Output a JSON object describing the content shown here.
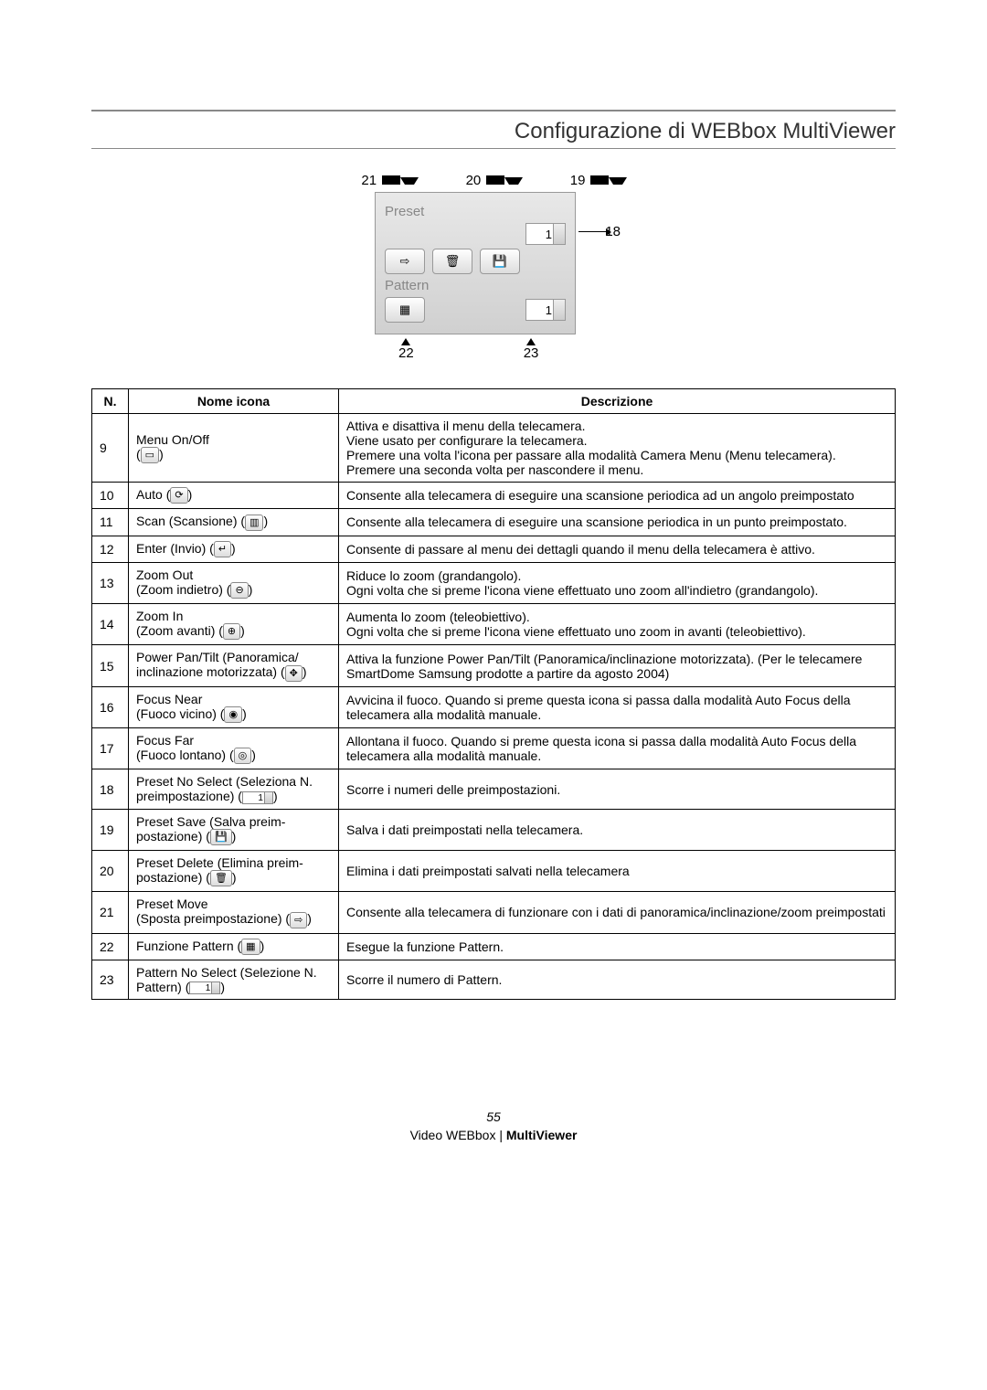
{
  "header": {
    "title": "Configurazione di WEBbox MultiViewer"
  },
  "diagram": {
    "top_callouts": [
      "21",
      "20",
      "19"
    ],
    "right_callout": "18",
    "bottom_callouts": [
      "22",
      "23"
    ],
    "panel": {
      "label_preset": "Preset",
      "preset_value": "1",
      "label_pattern": "Pattern",
      "pattern_value": "1"
    }
  },
  "table": {
    "headers": {
      "n": "N.",
      "name": "Nome icona",
      "desc": "Descrizione"
    },
    "rows": [
      {
        "n": "9",
        "name": "Menu On/Off",
        "icon": "▭",
        "desc": "Attiva e disattiva il menu della telecamera.\nViene usato per configurare la telecamera.\nPremere una volta l'icona per passare alla modalità Camera Menu (Menu telecamera).\nPremere una seconda volta per nascondere il menu."
      },
      {
        "n": "10",
        "name_pre": "Auto (",
        "icon": "⟳",
        "name_post": ")",
        "desc": "Consente alla telecamera di eseguire una scansione periodica ad un angolo preimpostato"
      },
      {
        "n": "11",
        "name_pre": "Scan (Scansione) (",
        "icon": "▥",
        "name_post": ")",
        "desc": "Consente alla telecamera di eseguire una scansione periodica in un punto preimpostato."
      },
      {
        "n": "12",
        "name_pre": "Enter (Invio) (",
        "icon": "↵",
        "name_post": ")",
        "desc": "Consente di passare al menu dei dettagli quando il menu della telecamera è attivo."
      },
      {
        "n": "13",
        "name": "Zoom Out",
        "name2_pre": "(Zoom indietro) (",
        "icon": "⊖",
        "name2_post": ")",
        "desc": "Riduce lo zoom (grandangolo).\nOgni volta che si preme l'icona viene effettuato uno zoom all'indietro (grandangolo)."
      },
      {
        "n": "14",
        "name": "Zoom In",
        "name2_pre": "(Zoom avanti) (",
        "icon": "⊕",
        "name2_post": ")",
        "desc": "Aumenta lo zoom (teleobiettivo).\nOgni volta che si preme l'icona viene effettuato uno zoom in avanti (teleobiettivo)."
      },
      {
        "n": "15",
        "name": "Power Pan/Tilt (Panoramica/",
        "name2_pre": "inclinazione motorizzata) (",
        "icon": "✥",
        "name2_post": ")",
        "desc": "Attiva la funzione Power Pan/Tilt (Panoramica/inclinazione motorizzata). (Per le telecamere SmartDome Samsung prodotte a partire da agosto 2004)"
      },
      {
        "n": "16",
        "name": "Focus Near",
        "name2_pre": "(Fuoco vicino) (",
        "icon": "◉",
        "name2_post": ")",
        "desc": "Avvicina il fuoco. Quando si preme questa icona si passa dalla modalità Auto Focus della telecamera alla modalità manuale."
      },
      {
        "n": "17",
        "name": "Focus Far",
        "name2_pre": "(Fuoco lontano) (",
        "icon": "◎",
        "name2_post": ")",
        "desc": "Allontana il fuoco. Quando si preme questa icona si passa dalla modalità Auto Focus della telecamera alla modalità manuale."
      },
      {
        "n": "18",
        "name": "Preset No Select (Seleziona N.",
        "name2_pre": "preimpostazione) (",
        "stepper": "1",
        "name2_post": ")",
        "desc": "Scorre i numeri delle preimpostazioni."
      },
      {
        "n": "19",
        "name": "Preset Save (Salva preim-",
        "name2_pre": "postazione) (",
        "icon": "💾",
        "name2_post": ")",
        "desc": "Salva i dati preimpostati nella telecamera."
      },
      {
        "n": "20",
        "name": "Preset Delete (Elimina preim-",
        "name2_pre": "postazione) (",
        "icon": "🗑",
        "name2_post": ")",
        "desc": "Elimina i dati preimpostati salvati nella telecamera"
      },
      {
        "n": "21",
        "name": "Preset Move",
        "name2_pre": "(Sposta preimpostazione) (",
        "icon": "⇨",
        "name2_post": ")",
        "desc": "Consente alla telecamera di funzionare con i dati di panoramica/inclinazione/zoom preimpostati"
      },
      {
        "n": "22",
        "name_pre": "Funzione Pattern (",
        "icon": "▦",
        "name_post": ")",
        "desc": "Esegue la funzione Pattern."
      },
      {
        "n": "23",
        "name": "Pattern No Select (Selezione N.",
        "name2_pre": "Pattern) (",
        "stepper": "1",
        "name2_post": ")",
        "desc": "Scorre il numero di Pattern."
      }
    ]
  },
  "footer": {
    "page": "55",
    "product_pre": "Video WEBbox | ",
    "product_bold": "MultiViewer"
  }
}
